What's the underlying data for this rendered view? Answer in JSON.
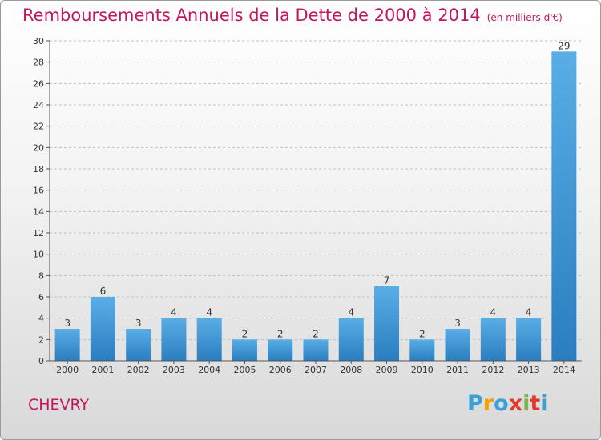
{
  "header": {
    "title": "Remboursements Annuels de la Dette de 2000 à 2014",
    "unit": "(en milliers d'€)"
  },
  "footer": {
    "place": "CHEVRY",
    "logo": "Proxiti"
  },
  "colors": {
    "title": "#c2185b",
    "bar_light": "#5aaee6",
    "bar_dark": "#2a7dbf",
    "grid": "#bfbfbf",
    "axis": "#555555"
  },
  "chart_data": {
    "type": "bar",
    "categories": [
      "2000",
      "2001",
      "2002",
      "2003",
      "2004",
      "2005",
      "2006",
      "2007",
      "2008",
      "2009",
      "2010",
      "2011",
      "2012",
      "2013",
      "2014"
    ],
    "values": [
      3,
      6,
      3,
      4,
      4,
      2,
      2,
      2,
      4,
      7,
      2,
      3,
      4,
      4,
      29
    ],
    "data_labels": [
      "3",
      "6",
      "3",
      "4",
      "4",
      "2",
      "2",
      "2",
      "4",
      "7",
      "2",
      "3",
      "4",
      "4",
      "29"
    ],
    "ylim": [
      0,
      30
    ],
    "yticks": [
      0,
      2,
      4,
      6,
      8,
      10,
      12,
      14,
      16,
      18,
      20,
      22,
      24,
      26,
      28,
      30
    ],
    "grid": "horizontal dashed",
    "legend": "none"
  }
}
